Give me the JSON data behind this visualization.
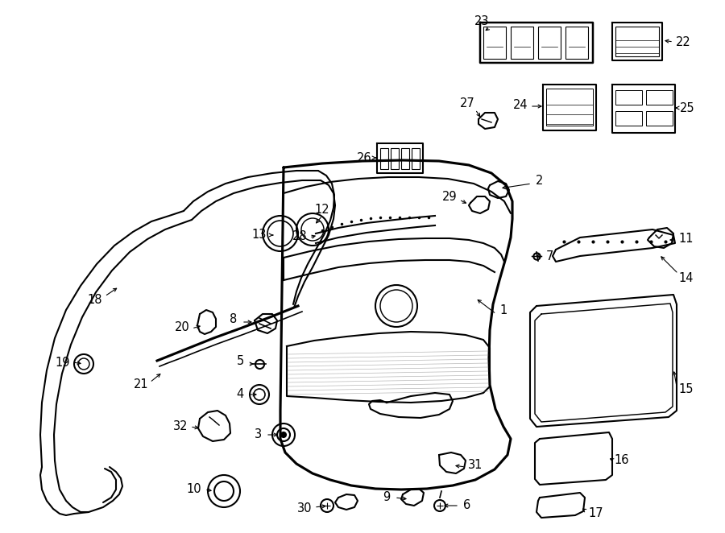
{
  "bg": "#ffffff",
  "lc": "#000000",
  "lw": 1.5,
  "fig_w": 9.0,
  "fig_h": 6.62,
  "dpi": 100
}
